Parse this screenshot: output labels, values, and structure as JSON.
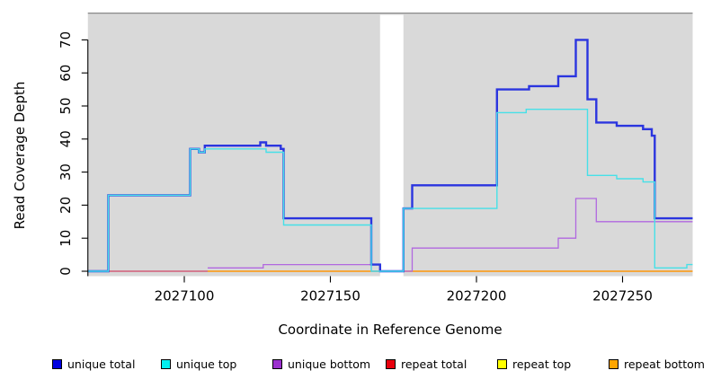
{
  "chart_data": {
    "type": "line",
    "title": "",
    "xlabel": "Coordinate in Reference Genome",
    "ylabel": "Read Coverage Depth",
    "xlim": [
      2027067,
      2027274
    ],
    "ylim": [
      0,
      70
    ],
    "x_ticks": [
      2027100,
      2027150,
      2027200,
      2027250
    ],
    "y_ticks": [
      0,
      10,
      20,
      30,
      40,
      50,
      60,
      70
    ],
    "grid": false,
    "panel_bg": "#d9d9d9",
    "gap_region": {
      "x_start": 2027167,
      "x_end": 2027175,
      "color": "#ffffff"
    },
    "legend_position": "bottom",
    "x_end": 2027274,
    "series": [
      {
        "name": "repeat top",
        "line_color": "#f5e400",
        "width": 1.0,
        "points": [
          [
            2027067,
            0
          ]
        ]
      },
      {
        "name": "repeat total",
        "line_color": "#d04565",
        "width": 1.2,
        "points": [
          [
            2027067,
            0
          ]
        ]
      },
      {
        "name": "repeat bottom",
        "line_color": "#ffa313",
        "width": 1.5,
        "points": [
          [
            2027108,
            0
          ]
        ]
      },
      {
        "name": "unique bottom",
        "line_color": "#b168e0",
        "width": 1.3,
        "points": [
          [
            2027108,
            1
          ],
          [
            2027127,
            2
          ],
          [
            2027164,
            0
          ],
          [
            2027178,
            7
          ],
          [
            2027228,
            10
          ],
          [
            2027234,
            22
          ],
          [
            2027241,
            15
          ]
        ]
      },
      {
        "name": "unique total",
        "line_color": "#2b35df",
        "width": 2.4,
        "points": [
          [
            2027067,
            0
          ],
          [
            2027074,
            23
          ],
          [
            2027102,
            37
          ],
          [
            2027105,
            36
          ],
          [
            2027107,
            38
          ],
          [
            2027126,
            39
          ],
          [
            2027128,
            38
          ],
          [
            2027133,
            37
          ],
          [
            2027134,
            16
          ],
          [
            2027164,
            2
          ],
          [
            2027167,
            0
          ],
          [
            2027175,
            19
          ],
          [
            2027178,
            26
          ],
          [
            2027207,
            55
          ],
          [
            2027218,
            56
          ],
          [
            2027228,
            59
          ],
          [
            2027234,
            70
          ],
          [
            2027238,
            52
          ],
          [
            2027241,
            45
          ],
          [
            2027248,
            44
          ],
          [
            2027257,
            43
          ],
          [
            2027260,
            41
          ],
          [
            2027261,
            16
          ]
        ]
      },
      {
        "name": "unique top",
        "line_color": "#46e0e8",
        "width": 1.4,
        "points": [
          [
            2027067,
            0
          ],
          [
            2027074,
            23
          ],
          [
            2027102,
            37
          ],
          [
            2027105,
            36
          ],
          [
            2027107,
            37
          ],
          [
            2027128,
            36
          ],
          [
            2027134,
            14
          ],
          [
            2027164,
            0
          ],
          [
            2027175,
            19
          ],
          [
            2027207,
            48
          ],
          [
            2027217,
            49
          ],
          [
            2027238,
            29
          ],
          [
            2027248,
            28
          ],
          [
            2027257,
            27
          ],
          [
            2027261,
            1
          ],
          [
            2027272,
            2
          ]
        ]
      }
    ],
    "legend": [
      {
        "label": "unique total",
        "color": "#0000e0"
      },
      {
        "label": "unique top",
        "color": "#00eeee"
      },
      {
        "label": "unique bottom",
        "color": "#9b30ce"
      },
      {
        "label": "repeat total",
        "color": "#e8000d"
      },
      {
        "label": "repeat top",
        "color": "#ffff00"
      },
      {
        "label": "repeat bottom",
        "color": "#ffa500"
      }
    ]
  }
}
